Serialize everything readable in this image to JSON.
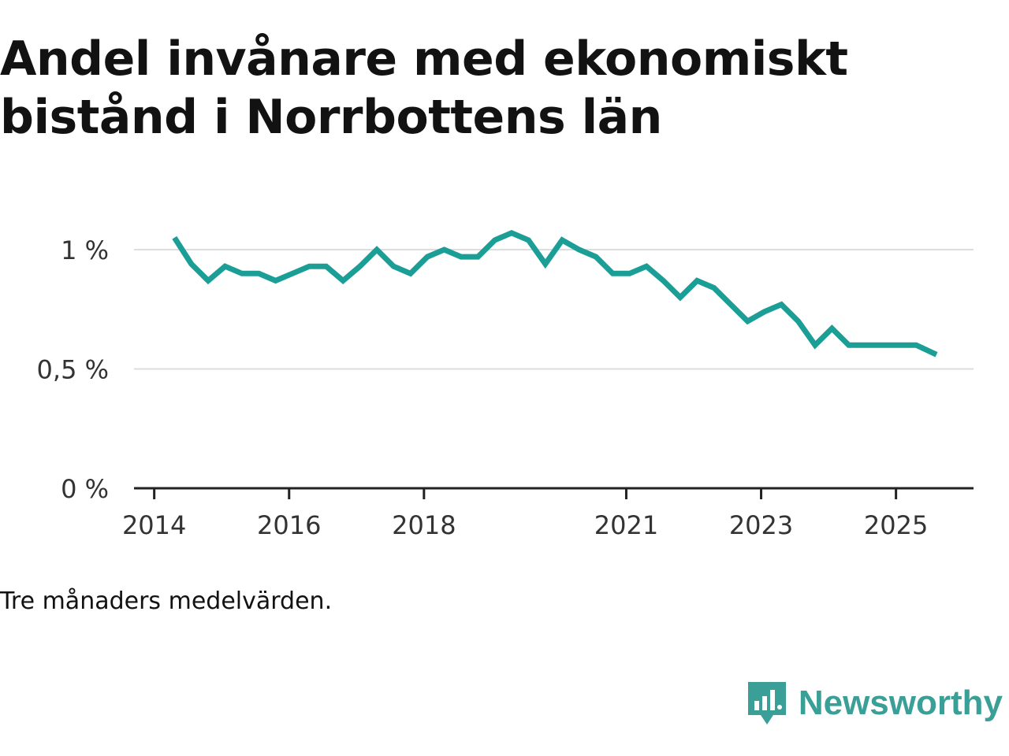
{
  "title": "Andel invånare med ekonomiskt bistånd i Norrbottens län",
  "note": "Tre månaders medelvärden.",
  "brand": {
    "name": "Newsworthy",
    "icon": "newsworthy-logo-icon",
    "color": "#3a9f96"
  },
  "colors": {
    "line": "#1a9e96",
    "grid": "#dddddd",
    "axis": "#222222",
    "text": "#121212"
  },
  "chart_data": {
    "type": "line",
    "title": "Andel invånare med ekonomiskt bistånd i Norrbottens län",
    "xlabel": "",
    "ylabel": "",
    "ylim": [
      0,
      1.0
    ],
    "grid": true,
    "y_ticks": [
      {
        "value": 0,
        "label": "0 %"
      },
      {
        "value": 0.5,
        "label": "0,5 %"
      },
      {
        "value": 1.0,
        "label": "1 %"
      }
    ],
    "x_ticks": [
      {
        "value": 2014.0,
        "label": "2014"
      },
      {
        "value": 2016.0,
        "label": "2016"
      },
      {
        "value": 2018.0,
        "label": "2018"
      },
      {
        "value": 2021.0,
        "label": "2021"
      },
      {
        "value": 2023.0,
        "label": "2023"
      },
      {
        "value": 2025.0,
        "label": "2025"
      }
    ],
    "xlim": [
      2013.7,
      2026.15
    ],
    "series": [
      {
        "name": "Andel invånare med ekonomiskt bistånd",
        "x": [
          2014.3,
          2014.55,
          2014.8,
          2015.05,
          2015.3,
          2015.55,
          2015.8,
          2016.05,
          2016.3,
          2016.55,
          2016.8,
          2017.05,
          2017.3,
          2017.55,
          2017.8,
          2018.05,
          2018.3,
          2018.55,
          2018.8,
          2019.05,
          2019.3,
          2019.55,
          2019.8,
          2020.05,
          2020.3,
          2020.55,
          2020.8,
          2021.05,
          2021.3,
          2021.55,
          2021.8,
          2022.05,
          2022.3,
          2022.55,
          2022.8,
          2023.05,
          2023.3,
          2023.55,
          2023.8,
          2024.05,
          2024.3,
          2024.55,
          2024.8,
          2025.05,
          2025.3,
          2025.6
        ],
        "values": [
          1.05,
          0.94,
          0.87,
          0.93,
          0.9,
          0.9,
          0.87,
          0.9,
          0.93,
          0.93,
          0.87,
          0.93,
          1.0,
          0.93,
          0.9,
          0.97,
          1.0,
          0.97,
          0.97,
          1.04,
          1.07,
          1.04,
          0.94,
          1.04,
          1.0,
          0.97,
          0.9,
          0.9,
          0.93,
          0.87,
          0.8,
          0.87,
          0.84,
          0.77,
          0.7,
          0.74,
          0.77,
          0.7,
          0.6,
          0.67,
          0.6,
          0.6,
          0.6,
          0.6,
          0.6,
          0.56
        ]
      }
    ]
  }
}
